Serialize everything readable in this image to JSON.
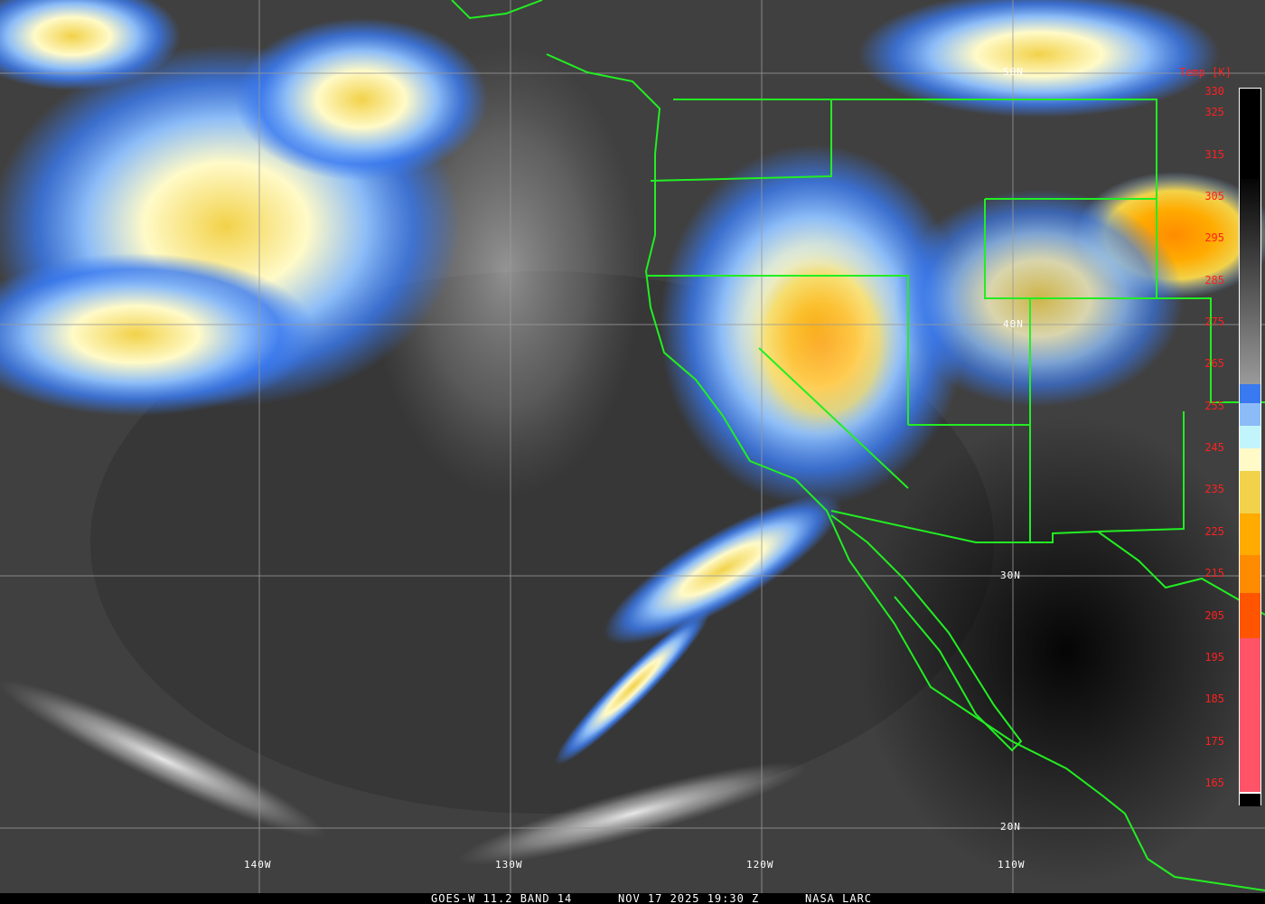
{
  "footer": {
    "satellite": "GOES-W 11.2 BAND 14",
    "datetime": "NOV 17 2025 19:30 Z",
    "credit": "NASA LARC"
  },
  "latitude_labels": [
    "50N",
    "40N",
    "30N",
    "20N"
  ],
  "longitude_labels": [
    "140W",
    "130W",
    "120W",
    "110W"
  ],
  "colorbar": {
    "title": "Temp [K]",
    "ticks": [
      "330",
      "325",
      "315",
      "305",
      "295",
      "285",
      "275",
      "265",
      "255",
      "245",
      "235",
      "225",
      "215",
      "205",
      "195",
      "185",
      "175",
      "165"
    ],
    "colors": {
      "warm_black": "#000000",
      "gray_mid": "#8c8c8c",
      "blue": "#3a7af0",
      "light_blue": "#8cbcf7",
      "pale_cyan": "#c2f5fb",
      "cream": "#fffac8",
      "yellow": "#f2d24a",
      "amber": "#ffab00",
      "orange": "#ff8c00",
      "red_orange": "#ff5500",
      "pink": "#ff5468"
    }
  },
  "overlay_colors": {
    "borders": "#22ee22",
    "grid": "#9a9a9a",
    "labels": "#ffffff",
    "ticks": "#ff2020"
  }
}
